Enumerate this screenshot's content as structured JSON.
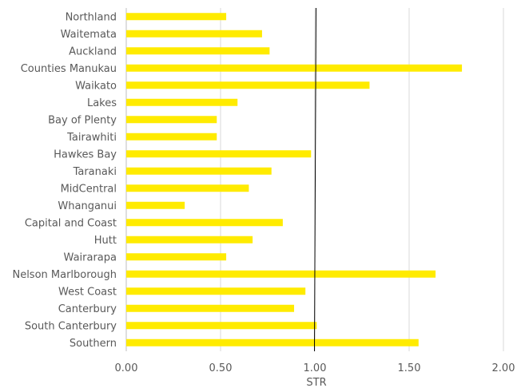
{
  "chart_data": {
    "type": "bar",
    "orientation": "horizontal",
    "categories": [
      "Northland",
      "Waitemata",
      "Auckland",
      "Counties Manukau",
      "Waikato",
      "Lakes",
      "Bay of Plenty",
      "Tairawhiti",
      "Hawkes Bay",
      "Taranaki",
      "MidCentral",
      "Whanganui",
      "Capital and Coast",
      "Hutt",
      "Wairarapa",
      "Nelson Marlborough",
      "West Coast",
      "Canterbury",
      "South Canterbury",
      "Southern"
    ],
    "values": [
      0.53,
      0.72,
      0.76,
      1.78,
      1.29,
      0.59,
      0.48,
      0.48,
      0.98,
      0.77,
      0.65,
      0.31,
      0.83,
      0.67,
      0.53,
      1.64,
      0.95,
      0.89,
      1.01,
      1.55
    ],
    "title": "",
    "xlabel": "STR",
    "ylabel": "",
    "xlim": [
      0,
      2
    ],
    "x_ticks": [
      "0.00",
      "0.50",
      "1.00",
      "1.50",
      "2.00"
    ],
    "reference_line": 1.0,
    "grid": "vertical",
    "legend": "none",
    "bar_color": "#ffeb00",
    "reference_color": "#000000"
  }
}
